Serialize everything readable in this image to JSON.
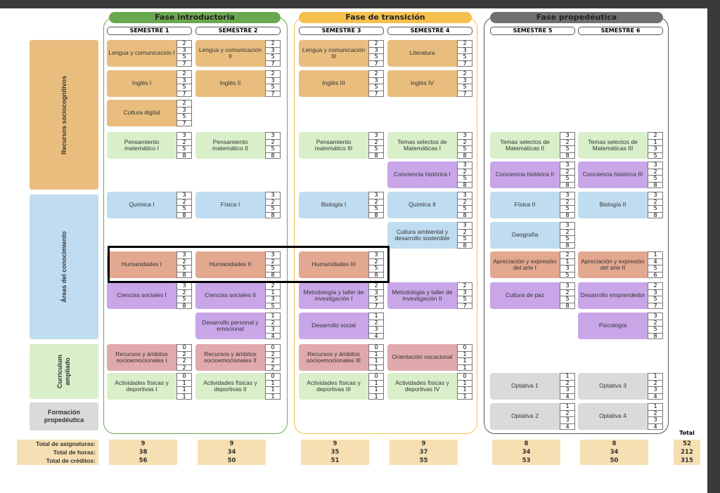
{
  "colors": {
    "tan": "#e8bd7e",
    "green": "#d9efc9",
    "purple": "#c9a6e8",
    "blue": "#bfdcf0",
    "salmon": "#e3a890",
    "pink": "#e0a9ac",
    "grey": "#dadada",
    "phase1": "#6aa84f",
    "phase2": "#f6c04f",
    "phase3": "#6b6b6b"
  },
  "phases": [
    {
      "title": "Fase introductoria"
    },
    {
      "title": "Fase de transición"
    },
    {
      "title": "Fase propedéutica"
    }
  ],
  "semesters": [
    "SEMESTRE 1",
    "SEMESTRE 2",
    "SEMESTRE 3",
    "SEMESTRE 4",
    "SEMESTRE 5",
    "SEMESTRE 6"
  ],
  "categories": [
    "Recursos sociocognitivos",
    "Áreas del conocimiento",
    "Currículum ampliado",
    "Formación propedéutica"
  ],
  "courses": [
    [
      {
        "r": 0,
        "name": "Lengua y comunicación I",
        "c": "tan",
        "nums": [
          "2",
          "3",
          "5",
          "7"
        ]
      },
      {
        "r": 1,
        "name": "Inglés I",
        "c": "tan",
        "nums": [
          "2",
          "3",
          "5",
          "7"
        ]
      },
      {
        "r": 2,
        "name": "Cultura digital",
        "c": "tan",
        "nums": [
          "2",
          "3",
          "5",
          "7"
        ]
      },
      {
        "r": 3,
        "name": "Pensamiento matemático I",
        "c": "green",
        "nums": [
          "3",
          "2",
          "5",
          "8"
        ]
      },
      {
        "r": 5,
        "name": "Química I",
        "c": "blue",
        "nums": [
          "3",
          "2",
          "5",
          "8"
        ]
      },
      {
        "r": 7,
        "name": "Humanidades I",
        "c": "salmon",
        "nums": [
          "3",
          "2",
          "5",
          "8"
        ]
      },
      {
        "r": 8,
        "name": "Ciencias sociales I",
        "c": "purple",
        "nums": [
          "3",
          "2",
          "5",
          "8"
        ]
      },
      {
        "r": 10,
        "name": "Recursos y ámbitos socioemocionales I",
        "c": "pink",
        "nums": [
          "0",
          "2",
          "2",
          "2"
        ]
      },
      {
        "r": 11,
        "name": "Actividades físicas y deportivas I",
        "c": "green",
        "nums": [
          "0",
          "1",
          "1",
          "1"
        ]
      }
    ],
    [
      {
        "r": 0,
        "name": "Lengua y comunicación II",
        "c": "tan",
        "nums": [
          "2",
          "3",
          "5",
          "7"
        ]
      },
      {
        "r": 1,
        "name": "Inglés II",
        "c": "tan",
        "nums": [
          "2",
          "3",
          "5",
          "7"
        ]
      },
      {
        "r": 3,
        "name": "Pensamiento matemático II",
        "c": "green",
        "nums": [
          "3",
          "2",
          "5",
          "8"
        ]
      },
      {
        "r": 5,
        "name": "Física I",
        "c": "blue",
        "nums": [
          "3",
          "2",
          "5",
          "8"
        ]
      },
      {
        "r": 7,
        "name": "Humanidades II",
        "c": "salmon",
        "nums": [
          "3",
          "2",
          "5",
          "8"
        ]
      },
      {
        "r": 8,
        "name": "Ciencias sociales II",
        "c": "purple",
        "nums": [
          "2",
          "1",
          "3",
          "5"
        ]
      },
      {
        "r": 9,
        "name": "Desarrollo personal y emocional",
        "c": "purple",
        "nums": [
          "1",
          "2",
          "3",
          "4"
        ]
      },
      {
        "r": 10,
        "name": "Recursos y ámbitos socioemocionales II",
        "c": "pink",
        "nums": [
          "0",
          "2",
          "2",
          "2"
        ]
      },
      {
        "r": 11,
        "name": "Actividades físicas y deportivas II",
        "c": "green",
        "nums": [
          "0",
          "1",
          "1",
          "1"
        ]
      }
    ],
    [
      {
        "r": 0,
        "name": "Lengua y comunicación III",
        "c": "tan",
        "nums": [
          "2",
          "3",
          "5",
          "7"
        ]
      },
      {
        "r": 1,
        "name": "Inglés III",
        "c": "tan",
        "nums": [
          "2",
          "3",
          "5",
          "7"
        ]
      },
      {
        "r": 3,
        "name": "Pensamiento matemático III",
        "c": "green",
        "nums": [
          "3",
          "2",
          "5",
          "8"
        ]
      },
      {
        "r": 5,
        "name": "Biología I",
        "c": "blue",
        "nums": [
          "3",
          "2",
          "5",
          "8"
        ]
      },
      {
        "r": 7,
        "name": "Humanidades III",
        "c": "salmon",
        "nums": [
          "3",
          "2",
          "5",
          "8"
        ]
      },
      {
        "r": 8,
        "name": "Metodología y taller de investigación I",
        "c": "purple",
        "nums": [
          "2",
          "3",
          "5",
          "7"
        ]
      },
      {
        "r": 9,
        "name": "Desarrollo social",
        "c": "purple",
        "nums": [
          "1",
          "2",
          "3",
          "4"
        ]
      },
      {
        "r": 10,
        "name": "Recursos y ámbitos socioemocionales III",
        "c": "pink",
        "nums": [
          "0",
          "1",
          "1",
          "1"
        ]
      },
      {
        "r": 11,
        "name": "Actividades físicas y deportivas III",
        "c": "green",
        "nums": [
          "0",
          "1",
          "1",
          "1"
        ]
      }
    ],
    [
      {
        "r": 0,
        "name": "Literatura",
        "c": "tan",
        "nums": [
          "2",
          "3",
          "5",
          "7"
        ]
      },
      {
        "r": 1,
        "name": "Inglés IV",
        "c": "tan",
        "nums": [
          "2",
          "3",
          "5",
          "7"
        ]
      },
      {
        "r": 3,
        "name": "Temas selectos de Matemáticas I",
        "c": "green",
        "nums": [
          "3",
          "2",
          "5",
          "8"
        ]
      },
      {
        "r": 4,
        "name": "Conciencia histórica I",
        "c": "purple",
        "nums": [
          "3",
          "2",
          "5",
          "8"
        ]
      },
      {
        "r": 5,
        "name": "Química II",
        "c": "blue",
        "nums": [
          "3",
          "2",
          "5",
          "8"
        ]
      },
      {
        "r": 6,
        "name": "Cultura ambiental y desarrollo sostenible",
        "c": "blue",
        "nums": [
          "3",
          "2",
          "5",
          "8"
        ]
      },
      {
        "r": 8,
        "name": "Metodología y taller de investigación II",
        "c": "purple",
        "nums": [
          "2",
          "3",
          "5",
          "7"
        ]
      },
      {
        "r": 10,
        "name": "Orientación vocacional",
        "c": "pink",
        "nums": [
          "0",
          "1",
          "1",
          "1"
        ]
      },
      {
        "r": 11,
        "name": "Actividades físicas y deportivas IV",
        "c": "green",
        "nums": [
          "0",
          "1",
          "1",
          "1"
        ]
      }
    ],
    [
      {
        "r": 3,
        "name": "Temas selectos de Matemáticas II",
        "c": "green",
        "nums": [
          "3",
          "2",
          "5",
          "8"
        ]
      },
      {
        "r": 4,
        "name": "Conciencia histórica II",
        "c": "purple",
        "nums": [
          "3",
          "2",
          "5",
          "8"
        ]
      },
      {
        "r": 5,
        "name": "Física II",
        "c": "blue",
        "nums": [
          "3",
          "2",
          "5",
          "8"
        ]
      },
      {
        "r": 6,
        "name": "Geografía",
        "c": "blue",
        "nums": [
          "3",
          "2",
          "5",
          "8"
        ]
      },
      {
        "r": 7,
        "name": "Apreciación y expresión del arte I",
        "c": "salmon",
        "nums": [
          "2",
          "1",
          "3",
          "5"
        ]
      },
      {
        "r": 8,
        "name": "Cultura de paz",
        "c": "purple",
        "nums": [
          "3",
          "2",
          "5",
          "8"
        ]
      },
      {
        "r": 11,
        "name": "Optativa 1",
        "c": "grey",
        "nums": [
          "1",
          "2",
          "3",
          "4"
        ]
      },
      {
        "r": 12,
        "name": "Optativa 2",
        "c": "grey",
        "nums": [
          "1",
          "2",
          "3",
          "4"
        ]
      }
    ],
    [
      {
        "r": 3,
        "name": "Temas selectos de Matemáticas III",
        "c": "green",
        "nums": [
          "2",
          "1",
          "3",
          "5"
        ]
      },
      {
        "r": 4,
        "name": "Conciencia histórica III",
        "c": "purple",
        "nums": [
          "3",
          "2",
          "5",
          "8"
        ]
      },
      {
        "r": 5,
        "name": "Biología II",
        "c": "blue",
        "nums": [
          "3",
          "2",
          "5",
          "8"
        ]
      },
      {
        "r": 7,
        "name": "Apreciación y expresión del arte II",
        "c": "salmon",
        "nums": [
          "1",
          "4",
          "5",
          "6"
        ]
      },
      {
        "r": 8,
        "name": "Desarrollo emprendedor",
        "c": "purple",
        "nums": [
          "2",
          "3",
          "5",
          "7"
        ]
      },
      {
        "r": 9,
        "name": "Psicología",
        "c": "purple",
        "nums": [
          "3",
          "2",
          "5",
          "8"
        ]
      },
      {
        "r": 11,
        "name": "Optativa 3",
        "c": "grey",
        "nums": [
          "1",
          "2",
          "3",
          "4"
        ]
      },
      {
        "r": 12,
        "name": "Optativa 4",
        "c": "grey",
        "nums": [
          "1",
          "2",
          "3",
          "4"
        ]
      }
    ]
  ],
  "totals": {
    "labels": [
      "Total de asignaturas:",
      "Total de horas:",
      "Total de créditos:"
    ],
    "header": "Total",
    "semesters": [
      [
        "9",
        "38",
        "56"
      ],
      [
        "9",
        "34",
        "50"
      ],
      [
        "9",
        "35",
        "51"
      ],
      [
        "9",
        "37",
        "55"
      ],
      [
        "8",
        "34",
        "53"
      ],
      [
        "8",
        "34",
        "50"
      ]
    ],
    "overall": [
      "52",
      "212",
      "315"
    ]
  }
}
